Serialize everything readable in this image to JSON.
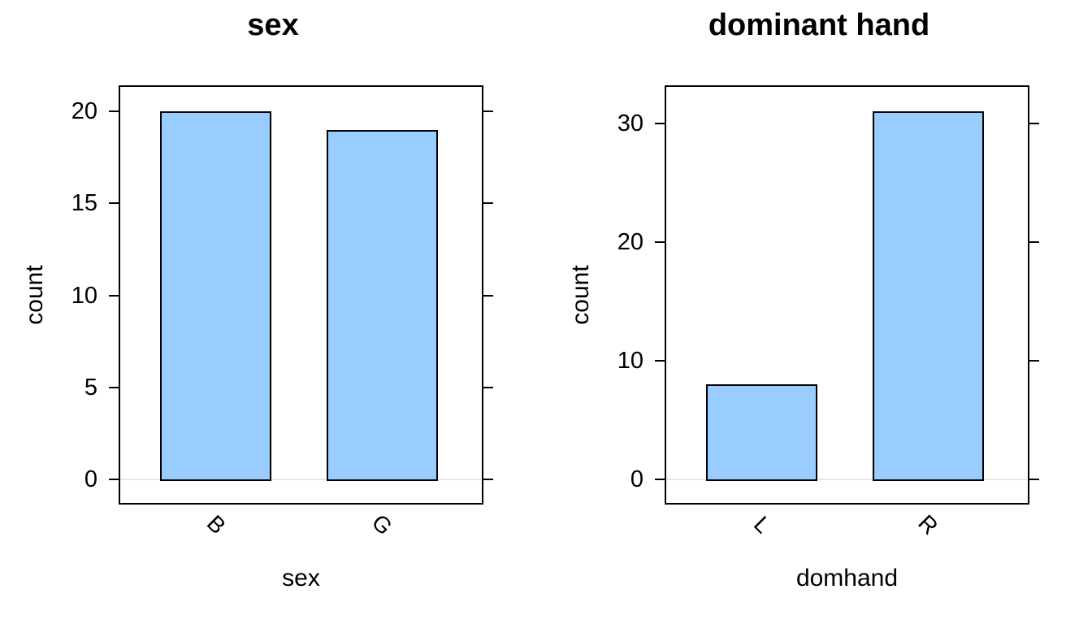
{
  "figure": {
    "background": "#ffffff",
    "text_color": "#000000"
  },
  "chart_data": [
    {
      "type": "bar",
      "title": "sex",
      "xlabel": "sex",
      "ylabel": "count",
      "categories": [
        "B",
        "G"
      ],
      "values": [
        20,
        19
      ],
      "yticks": [
        0,
        5,
        10,
        15,
        20
      ],
      "ylim": [
        -1.4,
        21.4
      ],
      "grid": false,
      "legend": "none",
      "bar_fill": "#99CCFF",
      "bar_border": "#000000",
      "baseline_color": "#e7e7e7",
      "category_label_rotation_deg": 45
    },
    {
      "type": "bar",
      "title": "dominant hand",
      "xlabel": "domhand",
      "ylabel": "count",
      "categories": [
        "L",
        "R"
      ],
      "values": [
        8,
        31
      ],
      "yticks": [
        0,
        10,
        20,
        30
      ],
      "ylim": [
        -2.1,
        33.3
      ],
      "grid": false,
      "legend": "none",
      "bar_fill": "#99CCFF",
      "bar_border": "#000000",
      "baseline_color": "#e7e7e7",
      "category_label_rotation_deg": 45
    }
  ]
}
